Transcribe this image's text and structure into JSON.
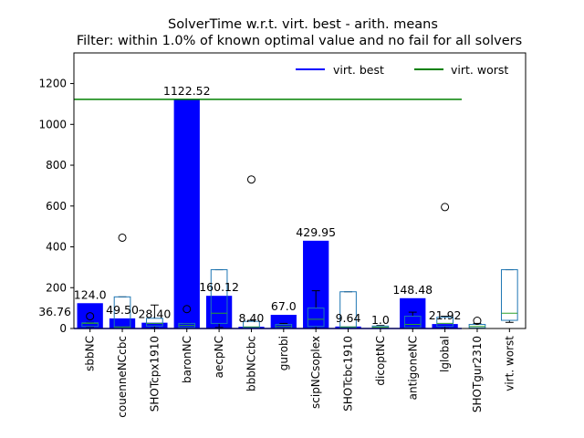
{
  "chart_data": {
    "type": "bar",
    "title": "SolverTime w.r.t. virt. best - arith. means",
    "subtitle": "Filter: within 1.0% of known optimal value and no fail for all solvers",
    "xlabel": "",
    "ylabel": "",
    "ylim": [
      0,
      1350
    ],
    "yticks": [
      0,
      200,
      400,
      600,
      800,
      1000,
      1200
    ],
    "grid": false,
    "legend_placement": "top-right",
    "categories": [
      "sbbNC",
      "couenneNCcbc",
      "SHOTcpx1910",
      "baronNC",
      "aecpNC",
      "bbbNCcbc",
      "gurobi",
      "scipNCsoplex",
      "SHOTcbc1910",
      "dicoptNC",
      "antigoneNC",
      "lglobal",
      "SHOTgur2310",
      "virt. worst"
    ],
    "values": [
      124.0,
      49.5,
      28.4,
      1122.52,
      160.12,
      8.4,
      67.0,
      429.95,
      9.64,
      1.0,
      148.48,
      21.92,
      null,
      null
    ],
    "value_labels": [
      "124.0",
      "49.50",
      "28.40",
      "1122.52",
      "160.12",
      "8.40",
      "67.0",
      "429.95",
      "9.64",
      "1.0",
      "148.48",
      "21.92",
      "",
      ""
    ],
    "extra_labels": [
      {
        "text": "36.76",
        "y": 80
      }
    ],
    "bar_color": "#0000ff",
    "reference_lines": [
      {
        "name": "virt. best",
        "color": "#0000ff",
        "y": 0
      },
      {
        "name": "virt. worst",
        "color": "#008000",
        "y": 1122.52
      }
    ],
    "boxplots": [
      {
        "category": "sbbNC",
        "q1": 10,
        "median": 25,
        "q3": 28,
        "whisker_low": 8,
        "whisker_high": 30,
        "outliers": [
          60
        ]
      },
      {
        "category": "couenneNCcbc",
        "q1": 3,
        "median": 8,
        "q3": 155,
        "whisker_low": 1,
        "whisker_high": 155,
        "outliers": [
          445
        ]
      },
      {
        "category": "SHOTcpx1910",
        "q1": 12,
        "median": 25,
        "q3": 50,
        "whisker_low": 3,
        "whisker_high": 115,
        "outliers": []
      },
      {
        "category": "baronNC",
        "q1": 5,
        "median": 15,
        "q3": 25,
        "whisker_low": 1,
        "whisker_high": 25,
        "outliers": [
          95
        ]
      },
      {
        "category": "aecpNC",
        "q1": 25,
        "median": 75,
        "q3": 288,
        "whisker_low": 5,
        "whisker_high": 288,
        "outliers": []
      },
      {
        "category": "bbbNCcbc",
        "q1": 2,
        "median": 8,
        "q3": 35,
        "whisker_low": 1,
        "whisker_high": 40,
        "outliers": [
          730
        ]
      },
      {
        "category": "gurobi",
        "q1": 2,
        "median": 10,
        "q3": 20,
        "whisker_low": 1,
        "whisker_high": 25,
        "outliers": []
      },
      {
        "category": "scipNCsoplex",
        "q1": 10,
        "median": 45,
        "q3": 100,
        "whisker_low": 2,
        "whisker_high": 185,
        "outliers": []
      },
      {
        "category": "SHOTcbc1910",
        "q1": 3,
        "median": 8,
        "q3": 180,
        "whisker_low": 1,
        "whisker_high": 180,
        "outliers": []
      },
      {
        "category": "dicoptNC",
        "q1": 2,
        "median": 6,
        "q3": 12,
        "whisker_low": 1,
        "whisker_high": 15,
        "outliers": []
      },
      {
        "category": "antigoneNC",
        "q1": 5,
        "median": 20,
        "q3": 60,
        "whisker_low": 1,
        "whisker_high": 80,
        "outliers": []
      },
      {
        "category": "lglobal",
        "q1": 10,
        "median": 25,
        "q3": 55,
        "whisker_low": 2,
        "whisker_high": 60,
        "outliers": [
          595
        ]
      },
      {
        "category": "SHOTgur2310",
        "q1": 3,
        "median": 10,
        "q3": 20,
        "whisker_low": 1,
        "whisker_high": 25,
        "outliers": [
          38
        ]
      },
      {
        "category": "virt. worst",
        "q1": 40,
        "median": 75,
        "q3": 288,
        "whisker_low": 30,
        "whisker_high": 288,
        "outliers": []
      }
    ],
    "box_color": "#1f77b4",
    "median_color": "#2ca02c"
  }
}
